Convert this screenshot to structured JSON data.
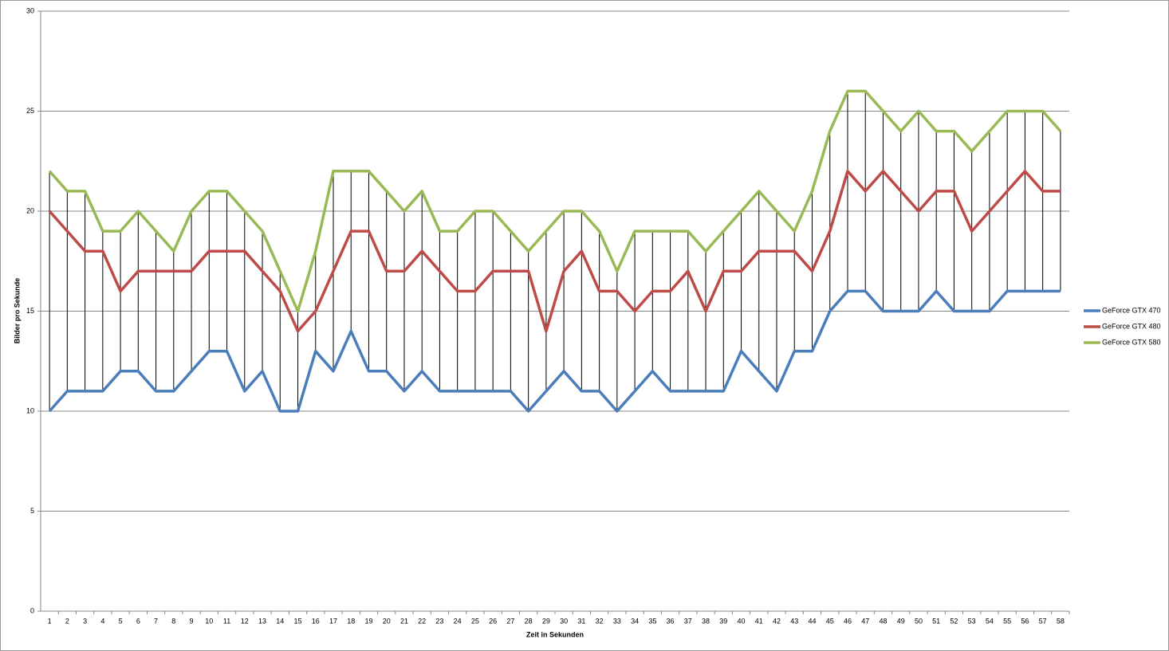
{
  "chart_data": {
    "type": "line",
    "x_label": "Zeit in Sekunden",
    "y_label": "Bilder pro Sekunde",
    "categories": [
      1,
      2,
      3,
      4,
      5,
      6,
      7,
      8,
      9,
      10,
      11,
      12,
      13,
      14,
      15,
      16,
      17,
      18,
      19,
      20,
      21,
      22,
      23,
      24,
      25,
      26,
      27,
      28,
      29,
      30,
      31,
      32,
      33,
      34,
      35,
      36,
      37,
      38,
      39,
      40,
      41,
      42,
      43,
      44,
      45,
      46,
      47,
      48,
      49,
      50,
      51,
      52,
      53,
      54,
      55,
      56,
      57,
      58
    ],
    "series": [
      {
        "name": "GeForce GTX 470",
        "color": "#4a7ebb",
        "values": [
          10,
          11,
          11,
          11,
          12,
          12,
          11,
          11,
          12,
          13,
          13,
          11,
          12,
          10,
          10,
          13,
          12,
          14,
          12,
          12,
          11,
          12,
          11,
          11,
          11,
          11,
          11,
          10,
          11,
          12,
          11,
          11,
          10,
          11,
          12,
          11,
          11,
          11,
          11,
          13,
          12,
          11,
          13,
          13,
          15,
          16,
          16,
          15,
          15,
          15,
          16,
          15,
          15,
          15,
          16,
          16,
          16,
          16
        ]
      },
      {
        "name": "GeForce GTX 480",
        "color": "#be4b48",
        "values": [
          20,
          19,
          18,
          18,
          16,
          17,
          17,
          17,
          17,
          18,
          18,
          18,
          17,
          16,
          14,
          15,
          17,
          19,
          19,
          17,
          17,
          18,
          17,
          16,
          16,
          17,
          17,
          17,
          14,
          17,
          18,
          16,
          16,
          15,
          16,
          16,
          17,
          15,
          17,
          17,
          18,
          18,
          18,
          17,
          19,
          22,
          21,
          22,
          21,
          20,
          21,
          21,
          19,
          20,
          21,
          22,
          21,
          21
        ]
      },
      {
        "name": "GeForce GTX 580",
        "color": "#98b954",
        "values": [
          22,
          21,
          21,
          19,
          19,
          20,
          19,
          18,
          20,
          21,
          21,
          20,
          19,
          17,
          15,
          18,
          22,
          22,
          22,
          21,
          20,
          21,
          19,
          19,
          20,
          20,
          19,
          18,
          19,
          20,
          20,
          19,
          17,
          19,
          19,
          19,
          19,
          18,
          19,
          20,
          21,
          20,
          19,
          21,
          24,
          26,
          26,
          25,
          24,
          25,
          24,
          24,
          23,
          24,
          25,
          25,
          25,
          24
        ]
      }
    ],
    "ylim": [
      0,
      30
    ],
    "yticks": [
      0,
      5,
      10,
      15,
      20,
      25,
      30
    ],
    "grid": true,
    "high_low_lines": true,
    "legend": "right"
  }
}
